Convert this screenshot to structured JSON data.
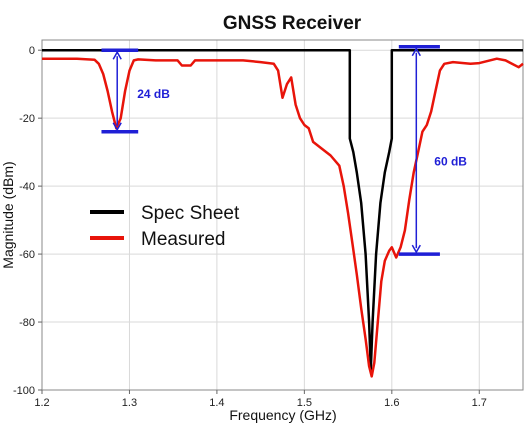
{
  "chart_data": {
    "type": "line",
    "title": "GNSS Receiver",
    "xlabel": "Frequency (GHz)",
    "ylabel": "Magnitude (dBm)",
    "xlim": [
      1.2,
      1.75
    ],
    "ylim": [
      -100,
      3
    ],
    "x_ticks": [
      "1.2",
      "1.3",
      "1.4",
      "1.5",
      "1.6",
      "1.7"
    ],
    "y_ticks": [
      "0",
      "-20",
      "-40",
      "-60",
      "-80",
      "-100"
    ],
    "grid": true,
    "legend_position": "left-middle",
    "series": [
      {
        "name": "Spec Sheet",
        "color": "#000000",
        "points": [
          [
            1.2,
            0
          ],
          [
            1.552,
            0
          ],
          [
            1.552,
            -26
          ],
          [
            1.556,
            -30
          ],
          [
            1.56,
            -36
          ],
          [
            1.565,
            -45
          ],
          [
            1.57,
            -60
          ],
          [
            1.574,
            -80
          ],
          [
            1.576,
            -94
          ],
          [
            1.578,
            -80
          ],
          [
            1.582,
            -60
          ],
          [
            1.587,
            -45
          ],
          [
            1.592,
            -36
          ],
          [
            1.597,
            -30
          ],
          [
            1.6,
            -26
          ],
          [
            1.6,
            0
          ],
          [
            1.75,
            0
          ]
        ]
      },
      {
        "name": "Measured",
        "color": "#e8140a",
        "points": [
          [
            1.2,
            -2.5
          ],
          [
            1.24,
            -2.5
          ],
          [
            1.26,
            -2.8
          ],
          [
            1.265,
            -4
          ],
          [
            1.27,
            -7
          ],
          [
            1.275,
            -12
          ],
          [
            1.28,
            -18
          ],
          [
            1.285,
            -23
          ],
          [
            1.29,
            -20
          ],
          [
            1.295,
            -12
          ],
          [
            1.3,
            -6
          ],
          [
            1.305,
            -3
          ],
          [
            1.31,
            -2.7
          ],
          [
            1.33,
            -3
          ],
          [
            1.355,
            -3
          ],
          [
            1.36,
            -4.5
          ],
          [
            1.37,
            -4.5
          ],
          [
            1.375,
            -3
          ],
          [
            1.4,
            -3
          ],
          [
            1.43,
            -3
          ],
          [
            1.45,
            -3.5
          ],
          [
            1.465,
            -4
          ],
          [
            1.47,
            -6
          ],
          [
            1.475,
            -14
          ],
          [
            1.48,
            -10
          ],
          [
            1.485,
            -8
          ],
          [
            1.49,
            -16
          ],
          [
            1.495,
            -20
          ],
          [
            1.5,
            -22
          ],
          [
            1.505,
            -23
          ],
          [
            1.51,
            -27
          ],
          [
            1.52,
            -29
          ],
          [
            1.53,
            -31
          ],
          [
            1.54,
            -34
          ],
          [
            1.545,
            -40
          ],
          [
            1.55,
            -48
          ],
          [
            1.555,
            -57
          ],
          [
            1.56,
            -66
          ],
          [
            1.565,
            -76
          ],
          [
            1.57,
            -85
          ],
          [
            1.574,
            -93
          ],
          [
            1.577,
            -96
          ],
          [
            1.58,
            -92
          ],
          [
            1.584,
            -80
          ],
          [
            1.588,
            -68
          ],
          [
            1.592,
            -62
          ],
          [
            1.597,
            -59
          ],
          [
            1.6,
            -58
          ],
          [
            1.605,
            -61
          ],
          [
            1.61,
            -58
          ],
          [
            1.615,
            -53
          ],
          [
            1.62,
            -44
          ],
          [
            1.625,
            -36
          ],
          [
            1.63,
            -30
          ],
          [
            1.635,
            -24
          ],
          [
            1.64,
            -22
          ],
          [
            1.645,
            -18
          ],
          [
            1.65,
            -12
          ],
          [
            1.655,
            -6
          ],
          [
            1.66,
            -4
          ],
          [
            1.67,
            -3.5
          ],
          [
            1.69,
            -4
          ],
          [
            1.7,
            -3.8
          ],
          [
            1.72,
            -2.5
          ],
          [
            1.73,
            -3
          ],
          [
            1.745,
            -5
          ],
          [
            1.75,
            -4
          ]
        ]
      }
    ],
    "annotations": [
      {
        "text": "24 dB",
        "x_range": [
          1.268,
          1.31
        ],
        "top": 0,
        "bottom": -24
      },
      {
        "text": "60 dB",
        "x_range": [
          1.608,
          1.655
        ],
        "top": 1,
        "bottom": -60
      }
    ]
  }
}
